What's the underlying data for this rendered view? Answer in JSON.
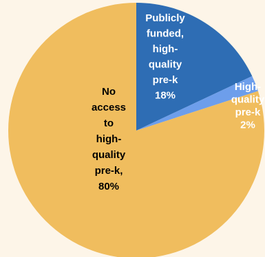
{
  "chart_data": {
    "type": "pie",
    "slices": [
      {
        "label_lines": [
          "Publicly",
          "funded,",
          "high-",
          "quality",
          "pre-k",
          "18%"
        ],
        "value": 18,
        "color": "#2e6db4",
        "label_color": "#ffffff"
      },
      {
        "label_lines": [
          "High-",
          "quality",
          "pre-k",
          "2%"
        ],
        "value": 2,
        "color": "#6d9eeb",
        "label_color": "#ffffff"
      },
      {
        "label_lines": [
          "No",
          "access",
          "to",
          "high-",
          "quality",
          "pre-k,",
          "80%"
        ],
        "value": 80,
        "color": "#f0bd5e",
        "label_color": "#000000"
      }
    ],
    "start_angle_deg": 0,
    "direction": "clockwise",
    "title": "",
    "legend": "none"
  }
}
